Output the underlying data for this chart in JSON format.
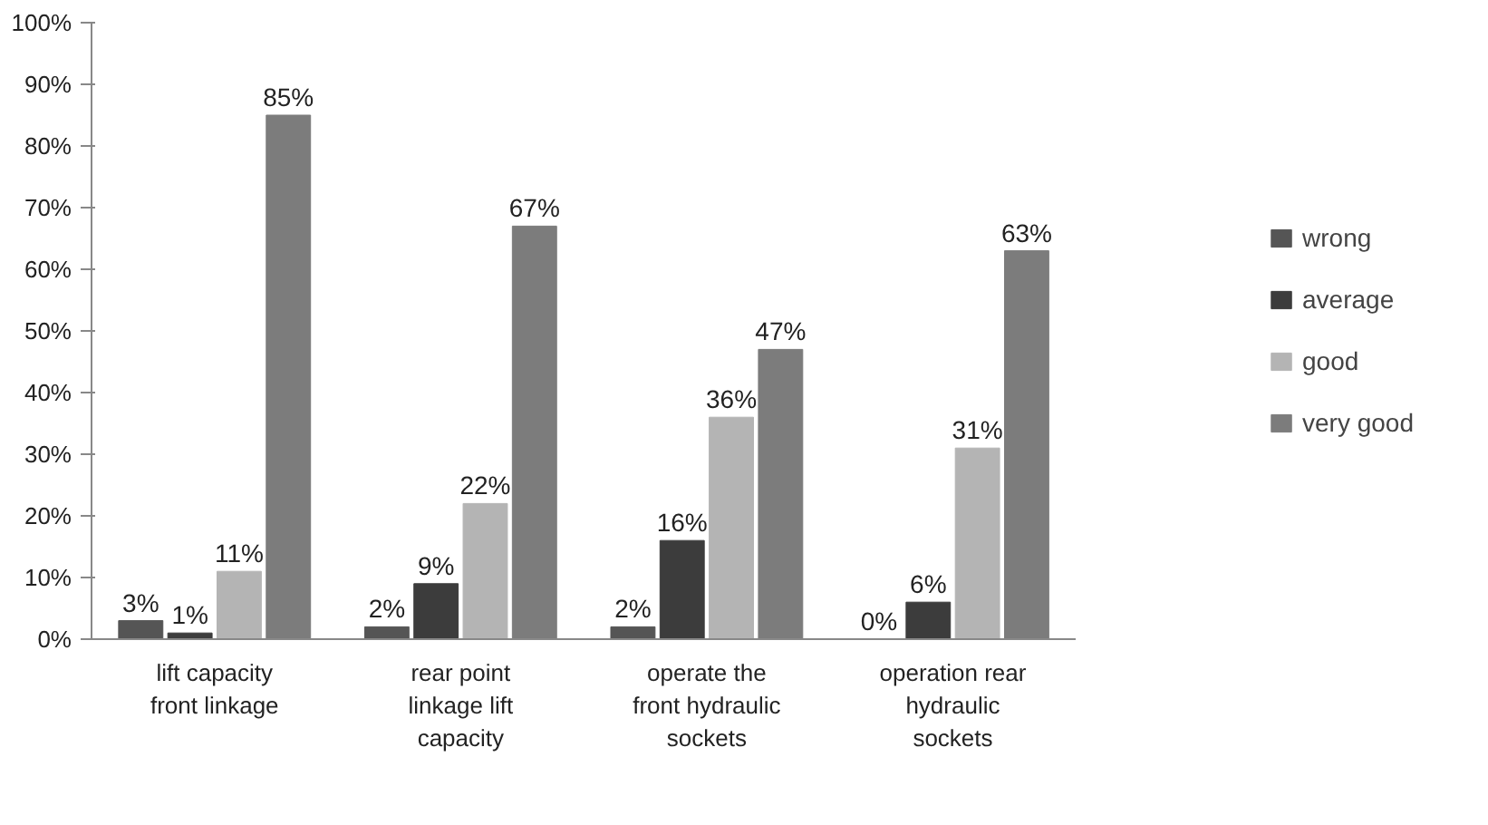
{
  "chart_data": {
    "type": "bar",
    "categories": [
      "lift capacity front linkage",
      "rear point linkage lift capacity",
      "operate the front hydraulic sockets",
      "operation rear hydraulic sockets"
    ],
    "series": [
      {
        "name": "wrong",
        "color": "#555555",
        "values": [
          3,
          2,
          2,
          0
        ],
        "value_labels": [
          "3%",
          "2%",
          "2%",
          "0%"
        ]
      },
      {
        "name": "average",
        "color": "#3c3c3c",
        "values": [
          1,
          9,
          16,
          6
        ],
        "value_labels": [
          "1%",
          "9%",
          "16%",
          "6%"
        ]
      },
      {
        "name": "good",
        "color": "#b4b4b4",
        "values": [
          11,
          22,
          36,
          31
        ],
        "value_labels": [
          "11%",
          "22%",
          "36%",
          "31%"
        ]
      },
      {
        "name": "very good",
        "color": "#7c7c7c",
        "values": [
          85,
          67,
          47,
          63
        ],
        "value_labels": [
          "85%",
          "67%",
          "47%",
          "63%"
        ]
      }
    ],
    "ylim": [
      0,
      100
    ],
    "yticks": [
      {
        "value": 0,
        "label": "0%"
      },
      {
        "value": 10,
        "label": "10%"
      },
      {
        "value": 20,
        "label": "20%"
      },
      {
        "value": 30,
        "label": "30%"
      },
      {
        "value": 40,
        "label": "40%"
      },
      {
        "value": 50,
        "label": "50%"
      },
      {
        "value": 60,
        "label": "60%"
      },
      {
        "value": 70,
        "label": "70%"
      },
      {
        "value": 80,
        "label": "80%"
      },
      {
        "value": 90,
        "label": "90%"
      },
      {
        "value": 100,
        "label": "100%"
      }
    ],
    "legend": "right"
  }
}
